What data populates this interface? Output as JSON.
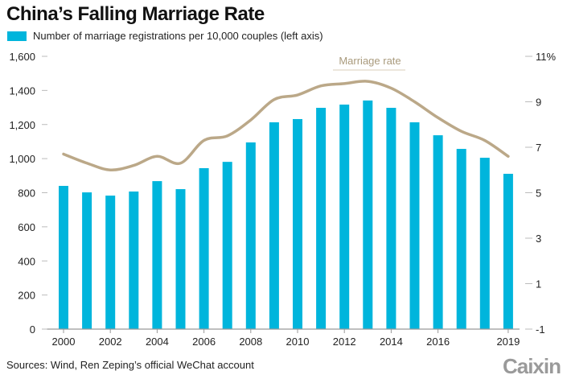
{
  "chart_data": {
    "type": "bar",
    "title": "China’s Falling Marriage Rate",
    "categories": [
      "2000",
      "2001",
      "2002",
      "2003",
      "2004",
      "2005",
      "2006",
      "2007",
      "2008",
      "2009",
      "2010",
      "2011",
      "2012",
      "2013",
      "2014",
      "2015",
      "2016",
      "2017",
      "2018",
      "2019"
    ],
    "series": [
      {
        "name": "Number of marriage registrations per 10,000 couples (left axis)",
        "type": "bar",
        "axis": "left",
        "color": "#00b5dc",
        "values": [
          840,
          802,
          783,
          807,
          868,
          821,
          944,
          981,
          1095,
          1213,
          1232,
          1298,
          1317,
          1341,
          1298,
          1213,
          1137,
          1057,
          1005,
          911
        ]
      },
      {
        "name": "Marriage rate",
        "type": "line",
        "axis": "right",
        "color": "#bba888",
        "values": [
          6.7,
          6.3,
          6.0,
          6.2,
          6.6,
          6.3,
          7.3,
          7.5,
          8.2,
          9.1,
          9.3,
          9.7,
          9.8,
          9.9,
          9.6,
          9.0,
          8.3,
          7.7,
          7.3,
          6.6
        ]
      }
    ],
    "left_axis": {
      "ylim": [
        0,
        1600
      ],
      "ticks": [
        "0",
        "200",
        "400",
        "600",
        "800",
        "1,000",
        "1,200",
        "1,400",
        "1,600"
      ],
      "tick_values": [
        0,
        200,
        400,
        600,
        800,
        1000,
        1200,
        1400,
        1600
      ]
    },
    "right_axis": {
      "ylim": [
        -1,
        11
      ],
      "ticks": [
        "-1",
        "1",
        "3",
        "5",
        "7",
        "9",
        "11%"
      ],
      "tick_values": [
        -1,
        1,
        3,
        5,
        7,
        9,
        11
      ]
    },
    "x_tick_labels": [
      "2000",
      "2002",
      "2004",
      "2006",
      "2008",
      "2010",
      "2012",
      "2014",
      "2016",
      "2019"
    ],
    "x_tick_index": [
      0,
      2,
      4,
      6,
      8,
      10,
      12,
      14,
      16,
      19
    ],
    "annotation": "Marriage rate",
    "grid": false,
    "legend_position": "top-left"
  },
  "header": {
    "title": "China’s Falling Marriage Rate",
    "legend_label": "Number of marriage registrations per 10,000 couples (left axis)"
  },
  "footer": {
    "source": "Sources: Wind, Ren Zeping’s official WeChat account",
    "logo": "Caixin"
  }
}
